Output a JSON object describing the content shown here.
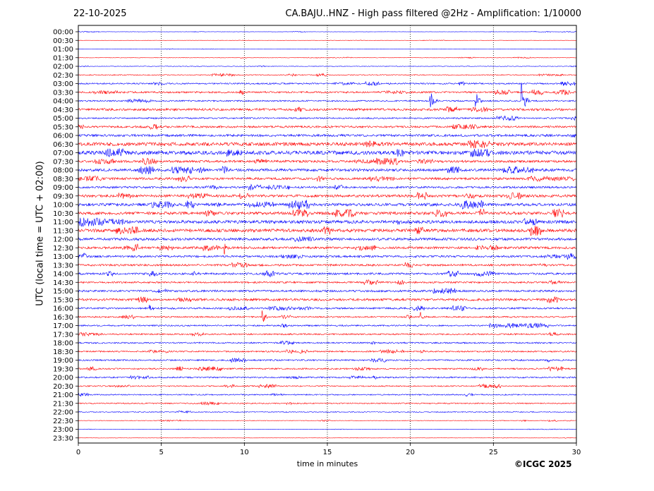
{
  "header": {
    "date": "22-10-2025",
    "title": "CA.BAJU..HNZ - High pass filtered @2Hz - Amplification: 1/10000"
  },
  "footer": {
    "copyright": "©ICGC 2025"
  },
  "chart_data": {
    "type": "line",
    "xlabel": "time in minutes",
    "ylabel": "UTC (local time = UTC + 02:00)",
    "xlim": [
      0,
      30
    ],
    "x_ticks": [
      0,
      5,
      10,
      15,
      20,
      25,
      30
    ],
    "vertical_grid": true,
    "rows": [
      "00:00",
      "00:30",
      "01:00",
      "01:30",
      "02:00",
      "02:30",
      "03:00",
      "03:30",
      "04:00",
      "04:30",
      "05:00",
      "05:30",
      "06:00",
      "06:30",
      "07:00",
      "07:30",
      "08:00",
      "08:30",
      "09:00",
      "09:30",
      "10:00",
      "10:30",
      "11:00",
      "11:30",
      "12:00",
      "12:30",
      "13:00",
      "13:30",
      "14:00",
      "14:30",
      "15:00",
      "15:30",
      "16:00",
      "16:30",
      "17:00",
      "17:30",
      "18:00",
      "18:30",
      "19:00",
      "19:30",
      "20:00",
      "20:30",
      "21:00",
      "21:30",
      "22:00",
      "22:30",
      "23:00",
      "23:30"
    ],
    "row_colors": [
      "#0000ff",
      "#ff0000"
    ],
    "noise_levels": [
      0.2,
      0.2,
      0.2,
      0.3,
      0.4,
      0.6,
      1.0,
      1.2,
      1.0,
      1.6,
      1.0,
      1.4,
      1.6,
      2.4,
      2.6,
      1.6,
      1.8,
      1.6,
      1.4,
      1.8,
      2.0,
      2.0,
      2.2,
      2.2,
      1.8,
      1.6,
      1.4,
      1.4,
      1.4,
      1.2,
      1.4,
      1.6,
      1.2,
      1.0,
      1.0,
      1.0,
      1.0,
      1.0,
      1.0,
      1.0,
      1.0,
      0.8,
      0.8,
      0.8,
      0.6,
      0.4,
      0.2,
      0.2
    ],
    "events": [
      {
        "row": "04:00",
        "minute": 21.2,
        "amplitude": 20
      },
      {
        "row": "04:00",
        "minute": 23.9,
        "amplitude": 18
      },
      {
        "row": "04:00",
        "minute": 26.7,
        "amplitude": 28
      },
      {
        "row": "12:30",
        "minute": 8.8,
        "amplitude": 10
      },
      {
        "row": "16:30",
        "minute": 11.1,
        "amplitude": 12
      },
      {
        "row": "16:30",
        "minute": 20.6,
        "amplitude": 8
      },
      {
        "row": "14:00",
        "minute": 6.9,
        "amplitude": 5
      },
      {
        "row": "11:00",
        "minute": 19.2,
        "amplitude": 6
      },
      {
        "row": "16:00",
        "minute": 4.3,
        "amplitude": 5
      },
      {
        "row": "13:30",
        "minute": 27.8,
        "amplitude": 5
      }
    ]
  }
}
